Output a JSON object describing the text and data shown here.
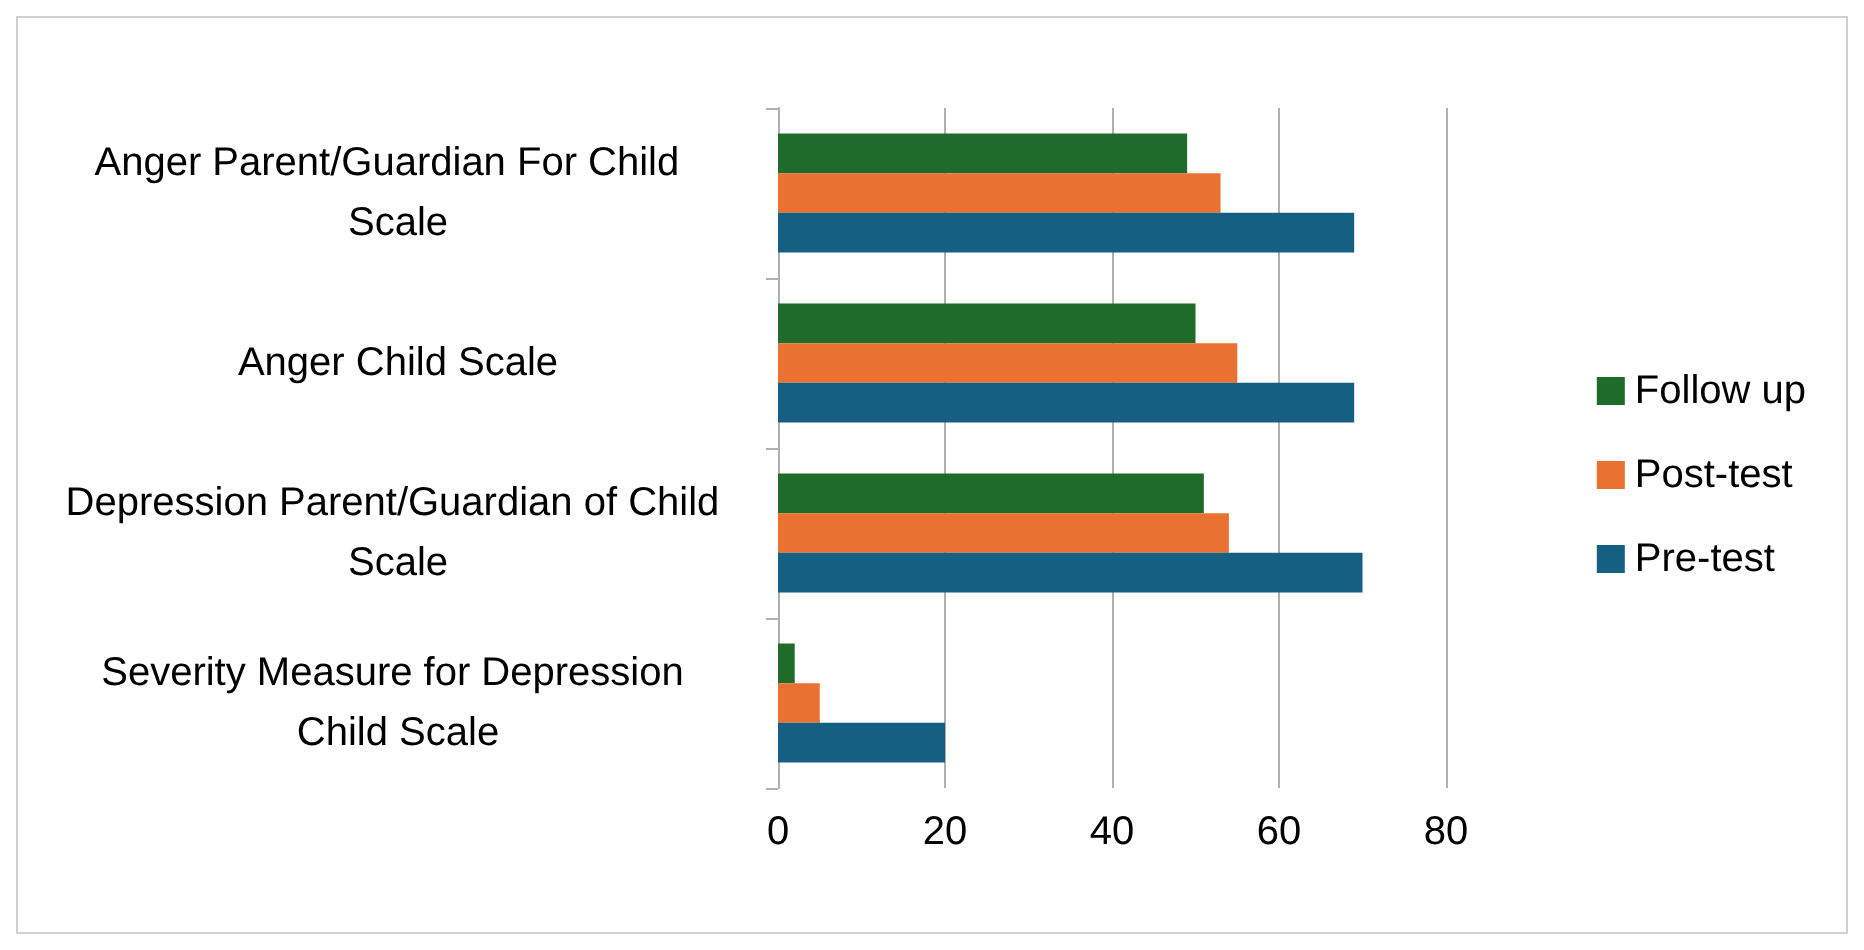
{
  "chart_data": {
    "type": "bar",
    "orientation": "horizontal",
    "categories": [
      "Anger Parent/Guardian For Child  Scale",
      "Anger Child Scale",
      "Depression Parent/Guardian of Child Scale",
      "Severity Measure for Depression Child Scale"
    ],
    "series": [
      {
        "name": "Follow up",
        "color": "#1e6b2a",
        "values": [
          49,
          50,
          51,
          2
        ]
      },
      {
        "name": "Post-test",
        "color": "#e97132",
        "values": [
          53,
          55,
          54,
          5
        ]
      },
      {
        "name": "Pre-test",
        "color": "#156082",
        "values": [
          69,
          69,
          70,
          20
        ]
      }
    ],
    "xlim": [
      0,
      80
    ],
    "xticks": [
      0,
      20,
      40,
      60,
      80
    ],
    "grid": "x",
    "legend": "right"
  }
}
